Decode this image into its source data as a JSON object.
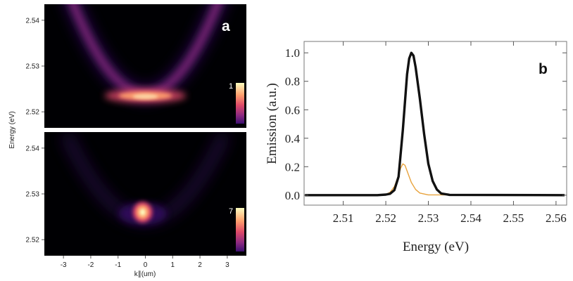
{
  "chart_data": [
    {
      "type": "heatmap",
      "panel_label": "a",
      "ylabel": "Energy (eV)",
      "xlabel": "k∥(um)",
      "xlim": [
        -3.7,
        3.7
      ],
      "x_ticks": [
        "-3",
        "-2",
        "-1",
        "0",
        "1",
        "2",
        "3"
      ],
      "x_tick_values": [
        -3,
        -2,
        -1,
        0,
        1,
        2,
        3
      ],
      "subplots": [
        {
          "name": "top",
          "ylim": [
            2.5165,
            2.5435
          ],
          "y_ticks": [
            "2.54",
            "2.53",
            "2.52"
          ],
          "y_tick_values": [
            2.54,
            2.53,
            2.52
          ],
          "colorbar_max_label": "1",
          "feature": "parabolic dispersion",
          "dispersion_min_energy": 2.524,
          "dispersion_curvature_eV_per_um2": 0.0028,
          "dispersion_visible_k_range": [
            -3.0,
            3.0
          ],
          "peak_k": 0,
          "peak_energy": 2.5235
        },
        {
          "name": "bottom",
          "ylim": [
            2.5165,
            2.5435
          ],
          "y_ticks": [
            "2.54",
            "2.53",
            "2.52"
          ],
          "y_tick_values": [
            2.54,
            2.53,
            2.52
          ],
          "colorbar_max_label": "7",
          "feature": "condensate spot",
          "peak_k": -0.1,
          "peak_energy": 2.526
        }
      ],
      "colormap": [
        "#000004",
        "#3b0f70",
        "#8c2981",
        "#de4968",
        "#fe9f6d",
        "#fcfdbf"
      ]
    },
    {
      "type": "line",
      "panel_label": "b",
      "xlabel": "Energy (eV)",
      "ylabel": "Emission (a.u.)",
      "xlim": [
        2.5008,
        2.5625
      ],
      "ylim": [
        -0.07,
        1.08
      ],
      "x_ticks": [
        "2.51",
        "2.52",
        "2.53",
        "2.54",
        "2.55",
        "2.56"
      ],
      "x_tick_values": [
        2.51,
        2.52,
        2.53,
        2.54,
        2.55,
        2.56
      ],
      "y_ticks": [
        "1.0",
        "0.8",
        "0.6",
        "0.4",
        "0.2",
        "0.0"
      ],
      "y_tick_values": [
        1.0,
        0.8,
        0.6,
        0.4,
        0.2,
        0.0
      ],
      "series": [
        {
          "color": "#111111",
          "x": [
            2.501,
            2.518,
            2.52,
            2.521,
            2.522,
            2.523,
            2.524,
            2.525,
            2.5255,
            2.526,
            2.5265,
            2.527,
            2.528,
            2.529,
            2.53,
            2.531,
            2.532,
            2.533,
            2.535,
            2.562
          ],
          "y": [
            0.0,
            0.0,
            0.004,
            0.01,
            0.035,
            0.13,
            0.46,
            0.85,
            0.96,
            1.0,
            0.98,
            0.9,
            0.68,
            0.43,
            0.22,
            0.1,
            0.04,
            0.012,
            0.002,
            0.0
          ]
        },
        {
          "color": "#e8a33d",
          "x": [
            2.501,
            2.518,
            2.52,
            2.521,
            2.522,
            2.523,
            2.5235,
            2.524,
            2.5245,
            2.525,
            2.526,
            2.527,
            2.528,
            2.53,
            2.562
          ],
          "y": [
            0.0,
            0.0,
            0.005,
            0.02,
            0.06,
            0.14,
            0.19,
            0.22,
            0.21,
            0.17,
            0.09,
            0.04,
            0.015,
            0.002,
            0.0
          ]
        }
      ]
    }
  ]
}
